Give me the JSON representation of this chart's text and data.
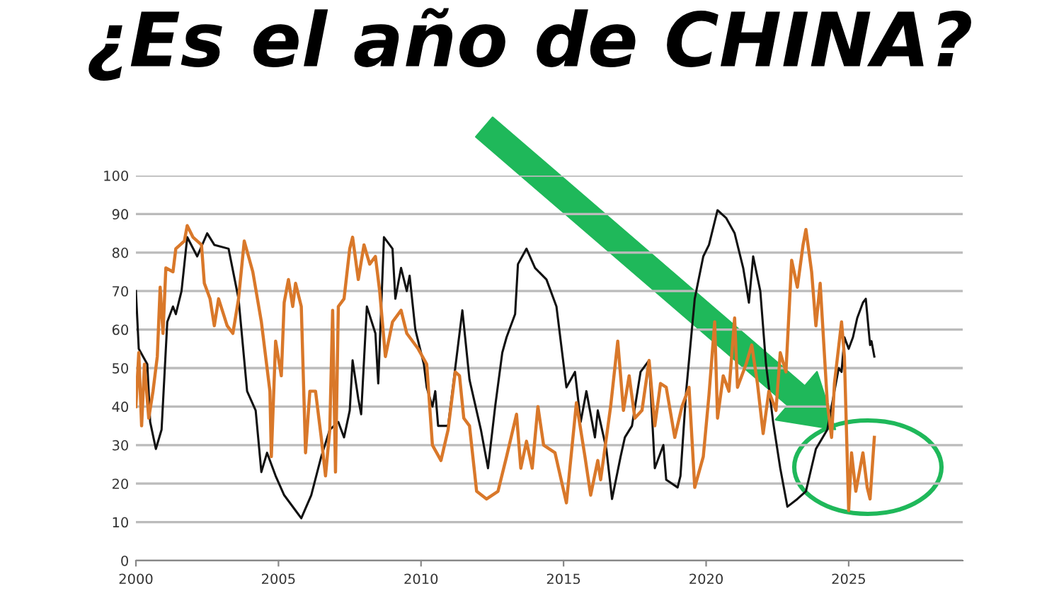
{
  "chart_data": {
    "type": "line",
    "title": "¿Es el año de CHINA?",
    "xlim": [
      2000,
      2029
    ],
    "xticks": [
      2000,
      2005,
      2010,
      2015,
      2020,
      2025
    ],
    "ylim": [
      0,
      100
    ],
    "yticks": [
      0,
      10,
      20,
      30,
      40,
      50,
      60,
      70,
      80,
      90,
      100
    ],
    "grid": "y",
    "marker": "none",
    "line_style": "solid",
    "series": [
      {
        "color": "#111111",
        "x": [
          2000.0,
          2000.1,
          2000.4,
          2000.5,
          2000.7,
          2000.9,
          2001.1,
          2001.3,
          2001.4,
          2001.6,
          2001.8,
          2002.15,
          2002.5,
          2002.75,
          2003.25,
          2003.6,
          2003.9,
          2004.2,
          2004.4,
          2004.6,
          2004.9,
          2005.2,
          2005.6,
          2005.8,
          2006.15,
          2006.5,
          2006.8,
          2007.1,
          2007.3,
          2007.5,
          2007.6,
          2007.8,
          2007.9,
          2008.1,
          2008.4,
          2008.5,
          2008.7,
          2009.0,
          2009.1,
          2009.3,
          2009.5,
          2009.6,
          2009.8,
          2010.1,
          2010.2,
          2010.4,
          2010.5,
          2010.6,
          2010.95,
          2011.2,
          2011.45,
          2011.7,
          2012.1,
          2012.35,
          2012.6,
          2012.85,
          2013.0,
          2013.3,
          2013.4,
          2013.7,
          2014.0,
          2014.4,
          2014.75,
          2015.1,
          2015.4,
          2015.6,
          2015.8,
          2016.1,
          2016.2,
          2016.5,
          2016.7,
          2017.0,
          2017.15,
          2017.4,
          2017.7,
          2018.0,
          2018.2,
          2018.5,
          2018.6,
          2019.0,
          2019.1,
          2019.3,
          2019.6,
          2019.9,
          2020.1,
          2020.4,
          2020.7,
          2021.0,
          2021.3,
          2021.5,
          2021.65,
          2021.9,
          2022.1,
          2022.35,
          2022.6,
          2022.85,
          2023.2,
          2023.5,
          2023.85,
          2024.25,
          2024.65,
          2024.75,
          2024.85,
          2025.0,
          2025.15,
          2025.3,
          2025.5,
          2025.6,
          2025.75,
          2025.8,
          2025.9
        ],
        "values": [
          70,
          55,
          51,
          36,
          29,
          34,
          62,
          66,
          64,
          70,
          84,
          79,
          85,
          82,
          81,
          68,
          44,
          39,
          23,
          28,
          22,
          17,
          13,
          11,
          17,
          27,
          34,
          36,
          32,
          39,
          52,
          42,
          38,
          66,
          59,
          46,
          84,
          81,
          68,
          76,
          70,
          74,
          60,
          51,
          45,
          40,
          44,
          35,
          35,
          50,
          65,
          47,
          34,
          24,
          40,
          54,
          58,
          64,
          77,
          81,
          76,
          73,
          66,
          45,
          49,
          36,
          44,
          32,
          39,
          29,
          16,
          27,
          32,
          35,
          49,
          52,
          24,
          30,
          21,
          19,
          22,
          44,
          68,
          79,
          82,
          91,
          89,
          85,
          76,
          67,
          79,
          70,
          51,
          36,
          24,
          14,
          16,
          18,
          29,
          34,
          50,
          49,
          58,
          55,
          58,
          63,
          67,
          68,
          56,
          57,
          53
        ]
      },
      {
        "color": "#d9782a",
        "x": [
          2000.0,
          2000.1,
          2000.2,
          2000.3,
          2000.45,
          2000.6,
          2000.75,
          2000.85,
          2000.95,
          2001.05,
          2001.3,
          2001.4,
          2001.7,
          2001.8,
          2002.0,
          2002.3,
          2002.4,
          2002.6,
          2002.75,
          2002.9,
          2003.2,
          2003.4,
          2003.6,
          2003.8,
          2004.1,
          2004.4,
          2004.7,
          2004.75,
          2004.9,
          2005.1,
          2005.2,
          2005.35,
          2005.5,
          2005.6,
          2005.8,
          2005.95,
          2006.1,
          2006.3,
          2006.5,
          2006.65,
          2006.8,
          2006.9,
          2007.0,
          2007.1,
          2007.3,
          2007.5,
          2007.6,
          2007.8,
          2008.0,
          2008.2,
          2008.4,
          2008.55,
          2008.75,
          2009.0,
          2009.3,
          2009.5,
          2009.9,
          2010.2,
          2010.4,
          2010.7,
          2010.95,
          2011.2,
          2011.35,
          2011.5,
          2011.7,
          2011.95,
          2012.3,
          2012.7,
          2013.0,
          2013.35,
          2013.5,
          2013.7,
          2013.9,
          2014.1,
          2014.3,
          2014.7,
          2015.1,
          2015.45,
          2015.75,
          2015.95,
          2016.2,
          2016.3,
          2016.65,
          2016.9,
          2017.1,
          2017.3,
          2017.5,
          2017.75,
          2018.0,
          2018.2,
          2018.4,
          2018.6,
          2018.9,
          2019.15,
          2019.4,
          2019.6,
          2019.9,
          2020.1,
          2020.3,
          2020.4,
          2020.6,
          2020.8,
          2021.0,
          2021.1,
          2021.4,
          2021.6,
          2021.8,
          2022.0,
          2022.2,
          2022.45,
          2022.6,
          2022.8,
          2023.0,
          2023.2,
          2023.4,
          2023.5,
          2023.7,
          2023.85,
          2024.0,
          2024.25,
          2024.4,
          2024.5,
          2024.75,
          2024.85,
          2025.0,
          2025.1,
          2025.25,
          2025.5,
          2025.65,
          2025.75,
          2025.9
        ],
        "values": [
          40,
          54,
          35,
          51,
          37,
          44,
          53,
          71,
          59,
          76,
          75,
          81,
          83,
          87,
          84,
          82,
          72,
          68,
          61,
          68,
          61,
          59,
          68,
          83,
          75,
          62,
          44,
          27,
          57,
          48,
          67,
          73,
          66,
          72,
          66,
          28,
          44,
          44,
          32,
          22,
          34,
          65,
          23,
          66,
          68,
          81,
          84,
          73,
          82,
          77,
          79,
          70,
          53,
          62,
          65,
          59,
          55,
          51,
          30,
          26,
          34,
          49,
          48,
          37,
          35,
          18,
          16,
          18,
          27,
          38,
          24,
          31,
          24,
          40,
          30,
          28,
          15,
          41,
          27,
          17,
          26,
          21,
          40,
          57,
          39,
          48,
          37,
          39,
          52,
          35,
          46,
          45,
          32,
          40,
          45,
          19,
          27,
          43,
          62,
          37,
          48,
          44,
          63,
          45,
          51,
          56,
          46,
          33,
          44,
          39,
          54,
          49,
          78,
          71,
          82,
          86,
          75,
          61,
          72,
          41,
          32,
          46,
          62,
          53,
          13,
          28,
          18,
          28,
          19,
          16,
          32
        ]
      }
    ]
  }
}
